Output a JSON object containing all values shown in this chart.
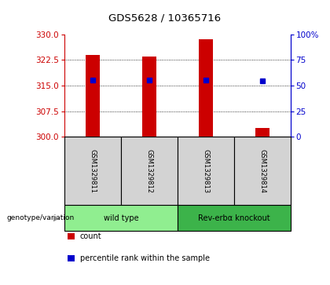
{
  "title": "GDS5628 / 10365716",
  "samples": [
    "GSM1329811",
    "GSM1329812",
    "GSM1329813",
    "GSM1329814"
  ],
  "bar_values": [
    324.0,
    323.5,
    328.5,
    302.5
  ],
  "bar_bottom": 300,
  "bar_color": "#cc0000",
  "dot_values": [
    316.5,
    316.5,
    316.5,
    316.3
  ],
  "dot_color": "#0000cc",
  "ylim_left": [
    300,
    330
  ],
  "yticks_left": [
    300,
    307.5,
    315,
    322.5,
    330
  ],
  "ylim_right": [
    0,
    100
  ],
  "yticks_right": [
    0,
    25,
    50,
    75,
    100
  ],
  "ytick_labels_right": [
    "0",
    "25",
    "50",
    "75",
    "100%"
  ],
  "left_axis_color": "#cc0000",
  "right_axis_color": "#0000cc",
  "grid_lines": [
    307.5,
    315,
    322.5
  ],
  "groups": [
    {
      "label": "wild type",
      "indices": [
        0,
        1
      ],
      "color": "#90ee90"
    },
    {
      "label": "Rev-erbα knockout",
      "indices": [
        2,
        3
      ],
      "color": "#3cb34a"
    }
  ],
  "group_row_label": "genotype/variation",
  "legend": [
    {
      "color": "#cc0000",
      "label": "count"
    },
    {
      "color": "#0000cc",
      "label": "percentile rank within the sample"
    }
  ],
  "bar_width": 0.25,
  "sample_row_color": "#d3d3d3",
  "background_color": "#ffffff"
}
